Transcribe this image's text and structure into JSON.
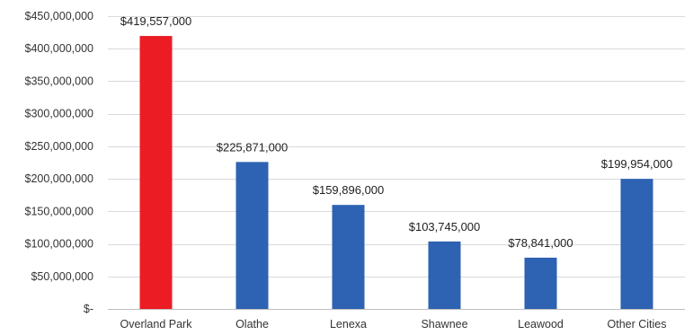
{
  "chart_data": {
    "type": "bar",
    "title": "",
    "xlabel": "",
    "ylabel": "",
    "categories": [
      "Overland Park",
      "Olathe",
      "Lenexa",
      "Shawnee",
      "Leawood",
      "Other Cities"
    ],
    "values": [
      419557000,
      225871000,
      159896000,
      103745000,
      78841000,
      199954000
    ],
    "data_labels": [
      "$419,557,000",
      "$225,871,000",
      "$159,896,000",
      "$103,745,000",
      "$78,841,000",
      "$199,954,000"
    ],
    "bar_colors": [
      "#ec1c24",
      "#2e62b2",
      "#2e62b2",
      "#2e62b2",
      "#2e62b2",
      "#2e62b2"
    ],
    "ylim": [
      0,
      450000000
    ],
    "yticks": [
      0,
      50000000,
      100000000,
      150000000,
      200000000,
      250000000,
      300000000,
      350000000,
      400000000,
      450000000
    ],
    "ytick_labels": [
      "$-",
      "$50,000,000",
      "$100,000,000",
      "$150,000,000",
      "$200,000,000",
      "$250,000,000",
      "$300,000,000",
      "$350,000,000",
      "$400,000,000",
      "$450,000,000"
    ],
    "grid": true,
    "legend": "none"
  }
}
